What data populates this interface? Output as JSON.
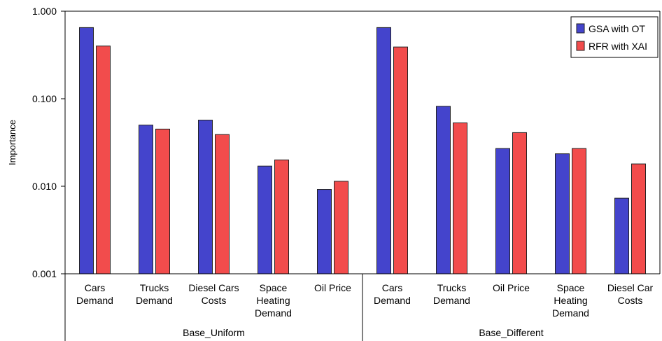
{
  "chart_data": {
    "type": "bar",
    "ylabel": "Importance",
    "yscale": "log",
    "ylim": [
      0.001,
      1.0
    ],
    "yticks": [
      {
        "value": 1.0,
        "label": "1.000"
      },
      {
        "value": 0.1,
        "label": "0.100"
      },
      {
        "value": 0.01,
        "label": "0.010"
      },
      {
        "value": 0.001,
        "label": "0.001"
      }
    ],
    "groups": [
      {
        "name": "Base_Uniform",
        "categories": [
          {
            "label": [
              "Cars",
              "Demand"
            ],
            "values": [
              0.65,
              0.4
            ]
          },
          {
            "label": [
              "Trucks",
              "Demand"
            ],
            "values": [
              0.05,
              0.045
            ]
          },
          {
            "label": [
              "Diesel Cars",
              "Costs"
            ],
            "values": [
              0.057,
              0.039
            ]
          },
          {
            "label": [
              "Space",
              "Heating",
              "Demand"
            ],
            "values": [
              0.017,
              0.02
            ]
          },
          {
            "label": [
              "Oil Price"
            ],
            "values": [
              0.0092,
              0.0114
            ]
          }
        ]
      },
      {
        "name": "Base_Different",
        "categories": [
          {
            "label": [
              "Cars",
              "Demand"
            ],
            "values": [
              0.65,
              0.39
            ]
          },
          {
            "label": [
              "Trucks",
              "Demand"
            ],
            "values": [
              0.082,
              0.053
            ]
          },
          {
            "label": [
              "Oil Price"
            ],
            "values": [
              0.027,
              0.041
            ]
          },
          {
            "label": [
              "Space",
              "Heating",
              "Demand"
            ],
            "values": [
              0.0235,
              0.027
            ]
          },
          {
            "label": [
              "Diesel Car",
              "Costs"
            ],
            "values": [
              0.0073,
              0.018
            ]
          }
        ]
      }
    ],
    "series": [
      {
        "name": "GSA with OT",
        "color": "#4444cc"
      },
      {
        "name": "RFR with XAI",
        "color": "#f24c4c"
      }
    ],
    "legend": {
      "position": "top-right"
    }
  }
}
